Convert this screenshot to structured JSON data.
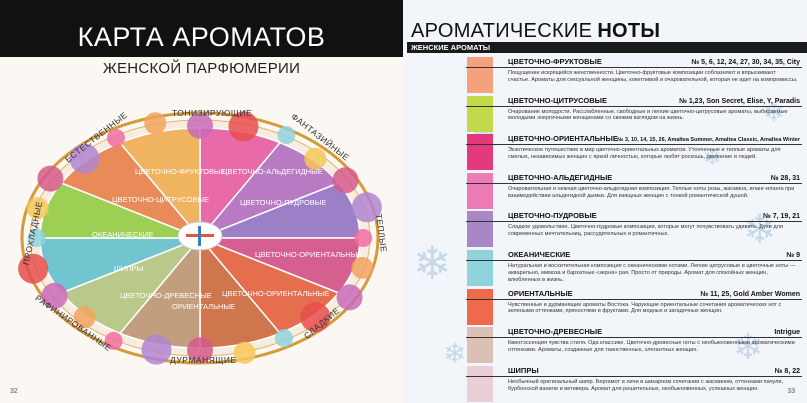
{
  "left": {
    "title": "КАРТА АРОМАТОВ",
    "subtitle": "ЖЕНСКОЙ ПАРФЮМЕРИИ",
    "page_number": "32",
    "ring_labels": {
      "energizing": "ТОНИЗИРУЮЩИЕ",
      "natural": "ЕСТЕСТВЕННЫЕ",
      "fantasy": "ФАНТАЗИЙНЫЕ",
      "cool": "ПРОХЛАДНЫЕ",
      "warm": "ТЕПЛЫЕ",
      "refined": "РАФИНИРОВАННЫЕ",
      "sweet": "СЛАДКИЕ",
      "intoxicating": "ДУРМАНЯЩИЕ"
    },
    "segments": {
      "floral_fruity": "ЦВЕТОЧНО-ФРУКТОВЫЕ",
      "floral_aldehydic": "ЦВЕТОЧНО-АЛЬДЕГИДНЫЕ",
      "floral_citrus": "ЦВЕТОЧНО-ЦИТРУСОВЫЕ",
      "floral_powdery": "ЦВЕТОЧНО-ПУДРОВЫЕ",
      "oceanic": "ОКЕАНИЧЕСКИЕ",
      "chypre": "ШИПРЫ",
      "floral_oriental": "ЦВЕТОЧНО-ОРИЕНТАЛЬНЫЕ",
      "floral_woody": "ЦВЕТОЧНО-ДРЕВЕСНЫЕ",
      "oriental": "ОРИЕНТАЛЬНЫЕ",
      "oriental_floral": "ЦВЕТОЧНО-ОРИЕНТАЛЬНЫЕ"
    }
  },
  "right": {
    "title_light": "АРОМАТИЧЕСКИЕ",
    "title_bold": "НОТЫ",
    "section": "ЖЕНСКИЕ АРОМАТЫ",
    "page_number": "33",
    "notes": [
      {
        "name": "ЦВЕТОЧНО-ФРУКТОВЫЕ",
        "numbers": "№ 5, 6, 12, 24, 27, 30, 34, 35, City",
        "color": "#f4a17e",
        "desc": "Пощущение искрящейся женственности. Цветочно-фруктовые композиции соблазняют и впрыскивают счастье. Ароматы для сексуальной женщины, кокетливой и очаровательной, которая не идет на компромиссы."
      },
      {
        "name": "ЦВЕТОЧНО-ЦИТРУСОВЫЕ",
        "numbers": "№ 1,23, Son Secret, Elise, Y, Paradis",
        "color": "#c2d94a",
        "desc": "Очарование молодости. Расслабленные, свободные и легкие цветочно-цитрусовые ароматы, выбираемые молодыми энергичными женщинами со свежим взглядом на жизнь."
      },
      {
        "name": "ЦВЕТОЧНО-ОРИЕНТАЛЬНЫЕ",
        "numbers": "№ 3, 10, 14, 15, 26, Amaltea Summer, Amaltea Classic, Amaltea Winter",
        "color": "#e23a7a",
        "desc": "Экзотическое путешествие в мир цветочно-ориентальных ароматов. Утонченные и теплые ароматы для смелых, независимых женщин с яркой личностью, которые любят роскошь, движение и людей."
      },
      {
        "name": "ЦВЕТОЧНО-АЛЬДЕГИДНЫЕ",
        "numbers": "№ 28, 31",
        "color": "#ec7bb6",
        "desc": "Очаровательная и нежная цветочно-альдегидная композиция. Теплые ноты розы, жасмина, иланг-иланга при взаимодействии альдегидной дымки. Для изящных женщин с тонкой романтической душой."
      },
      {
        "name": "ЦВЕТОЧНО-ПУДРОВЫЕ",
        "numbers": "№ 7, 19, 21",
        "color": "#a887c8",
        "desc": "Сладкое удовольствие. Цветочно-пудровые композиции, которые могут почувствовать удивить. Духи для современных мечтательниц, рассудительных и романтичных."
      },
      {
        "name": "ОКЕАНИЧЕСКИЕ",
        "numbers": "№ 9",
        "color": "#8fd3dc",
        "desc": "Натуральная и восхитительная композиция с океаническими нотами. Легкие цитрусовые и цветочные ноты — акварельно, мимоза и бархатные «зерна» рая. Просто от природы. Аромат для спокойных женщин, влюбленных в жизнь."
      },
      {
        "name": "ОРИЕНТАЛЬНЫЕ",
        "numbers": "№ 11, 25, Gold Amber Women",
        "color": "#ef6a4a",
        "desc": "Чувственные и дурманящие ароматы Востока. Чарующие ориентальные сочетания ароматических нот с зелеными оттенками, пряностями и фруктами. Для модных и загадочных женщин."
      },
      {
        "name": "ЦВЕТОЧНО-ДРЕВЕСНЫЕ",
        "numbers": "Intrigue",
        "color": "#dcc0b6",
        "desc": "Квинтэссенция чувства стиля. Ода классике. Цветочно-древесные ноты с необыкновенными ароматическими оттенками. Ароматы, созданные для таинственных, элегантных женщин."
      },
      {
        "name": "ШИПРЫ",
        "numbers": "№ 8, 22",
        "color": "#ead0d6",
        "desc": "Необычный оригинальный шипр. Бергамот и личи в шикарном сочетании с жасмином, оттенками пачули, бурбонской ванили и ветивера. Аромат для решительных, необыкновенных, успешных женщин."
      }
    ]
  }
}
